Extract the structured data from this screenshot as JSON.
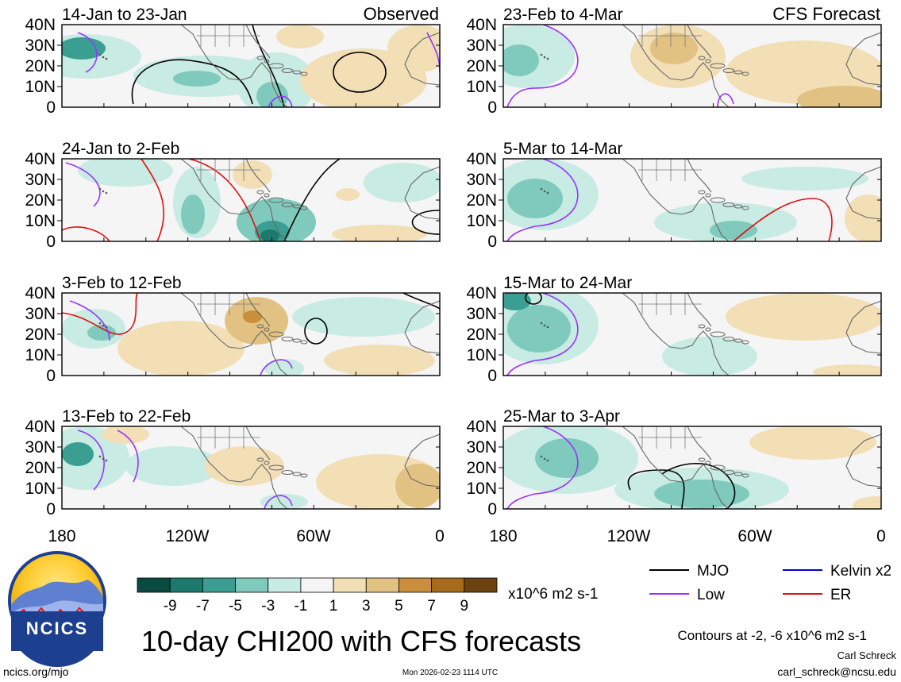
{
  "chart_data": {
    "type": "heatmap",
    "title": "10-day CHI200 with CFS forecasts",
    "units": "x10^6 m2 s-1",
    "region": {
      "lon_range": [
        180,
        0
      ],
      "lat_range": [
        0,
        40
      ]
    },
    "y_ticks": [
      "40N",
      "30N",
      "20N",
      "10N",
      "0"
    ],
    "x_ticks": [
      "180",
      "120W",
      "60W",
      "0"
    ],
    "colorbar": {
      "ticks": [
        "-9",
        "-7",
        "-5",
        "-3",
        "-1",
        "1",
        "3",
        "5",
        "7",
        "9"
      ],
      "colors": [
        "#0b4a41",
        "#1c7a6d",
        "#3a9e92",
        "#7fcabd",
        "#c8ebe3",
        "#f5f5f5",
        "#f2dfb6",
        "#e2c282",
        "#c98f3d",
        "#a66a1b",
        "#6b4210"
      ]
    },
    "contour_note": "Contours at -2, -6 x10^6 m2 s-1",
    "legend": [
      {
        "label": "MJO",
        "color": "#000000"
      },
      {
        "label": "Kelvin x2",
        "color": "#0000cc"
      },
      {
        "label": "Low",
        "color": "#9933ff"
      },
      {
        "label": "ER",
        "color": "#dd1111"
      }
    ],
    "columns": {
      "observed": "Observed",
      "forecast": "CFS Forecast"
    },
    "panels": [
      {
        "title": "14-Jan to 23-Jan",
        "source": "Observed"
      },
      {
        "title": "24-Jan to 2-Feb",
        "source": "Observed"
      },
      {
        "title": "3-Feb to 12-Feb",
        "source": "Observed"
      },
      {
        "title": "13-Feb to 22-Feb",
        "source": "Observed"
      },
      {
        "title": "23-Feb to 4-Mar",
        "source": "CFS Forecast"
      },
      {
        "title": "5-Mar to 14-Mar",
        "source": "CFS Forecast"
      },
      {
        "title": "15-Mar to 24-Mar",
        "source": "CFS Forecast"
      },
      {
        "title": "25-Mar to 3-Apr",
        "source": "CFS Forecast"
      }
    ]
  },
  "logo": {
    "text": "NCICS"
  },
  "footer": {
    "left": "ncics.org/mjo",
    "timestamp": "Mon 2026-02-23 1114 UTC",
    "author": "Carl Schreck",
    "email": "carl_schreck@ncsu.edu"
  }
}
